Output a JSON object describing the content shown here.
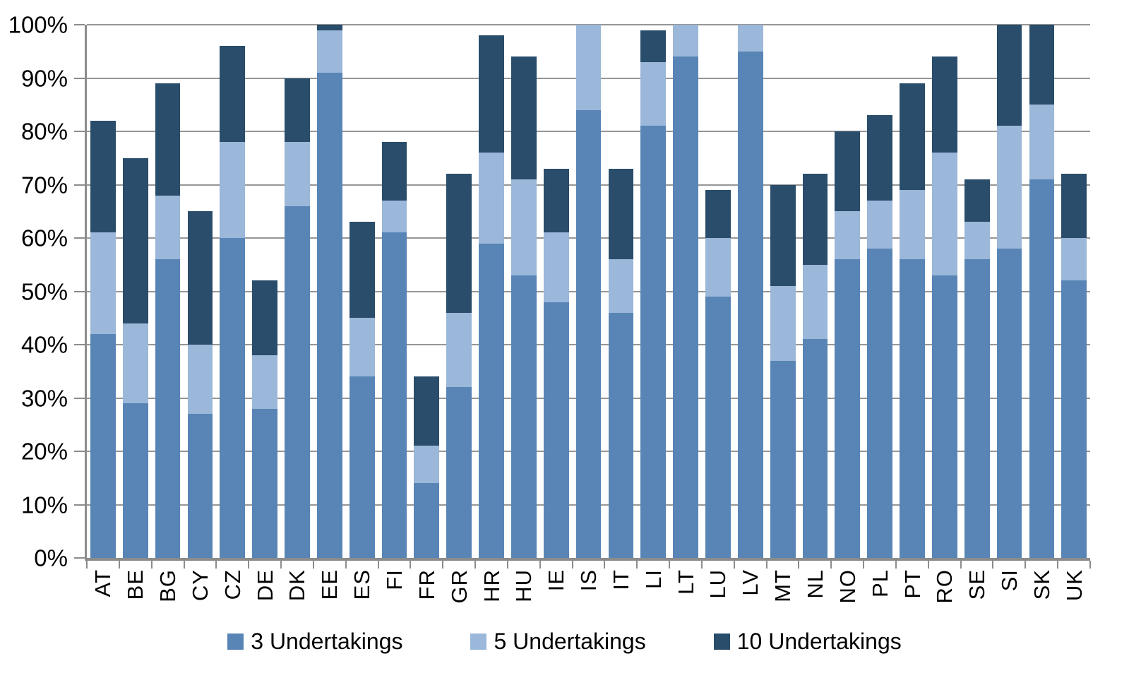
{
  "chart_data": {
    "type": "bar",
    "stacked": true,
    "title": "",
    "xlabel": "",
    "ylabel": "",
    "ylim": [
      0,
      100
    ],
    "grid": true,
    "gridline_color": "#969696",
    "axis_color": "#8C8C8C",
    "legend_position": "bottom",
    "ytick_labels": [
      "0%",
      "10%",
      "20%",
      "30%",
      "40%",
      "50%",
      "60%",
      "70%",
      "80%",
      "90%",
      "100%"
    ],
    "categories": [
      "AT",
      "BE",
      "BG",
      "CY",
      "CZ",
      "DE",
      "DK",
      "EE",
      "ES",
      "FI",
      "FR",
      "GR",
      "HR",
      "HU",
      "IE",
      "IS",
      "IT",
      "LI",
      "LT",
      "LU",
      "LV",
      "MT",
      "NL",
      "NO",
      "PL",
      "PT",
      "RO",
      "SE",
      "SI",
      "SK",
      "UK"
    ],
    "series": [
      {
        "name": "3 Undertakings",
        "color": "#5885B5",
        "values": [
          42,
          29,
          56,
          27,
          60,
          28,
          66,
          91,
          34,
          61,
          14,
          32,
          59,
          53,
          48,
          84,
          46,
          81,
          94,
          49,
          95,
          37,
          41,
          56,
          58,
          56,
          53,
          56,
          58,
          71,
          52
        ]
      },
      {
        "name": "5 Undertakings",
        "color": "#9BB7D9",
        "values": [
          19,
          15,
          12,
          13,
          18,
          10,
          12,
          8,
          11,
          6,
          7,
          14,
          17,
          18,
          13,
          16,
          10,
          12,
          6,
          11,
          5,
          14,
          14,
          9,
          9,
          13,
          23,
          7,
          23,
          14,
          8
        ]
      },
      {
        "name": "10 Undertakings",
        "color": "#294D6B",
        "values": [
          21,
          31,
          21,
          25,
          18,
          14,
          12,
          1,
          18,
          11,
          13,
          26,
          22,
          23,
          12,
          0,
          17,
          6,
          0,
          9,
          0,
          19,
          17,
          15,
          16,
          20,
          18,
          8,
          19,
          15,
          12
        ]
      }
    ],
    "cumulative_tops": [
      82,
      75,
      89,
      65,
      96,
      52,
      90,
      100,
      63,
      78,
      34,
      72,
      98,
      94,
      73,
      100,
      73,
      99,
      100,
      69,
      100,
      70,
      72,
      80,
      83,
      89,
      94,
      71,
      100,
      100,
      72
    ]
  }
}
